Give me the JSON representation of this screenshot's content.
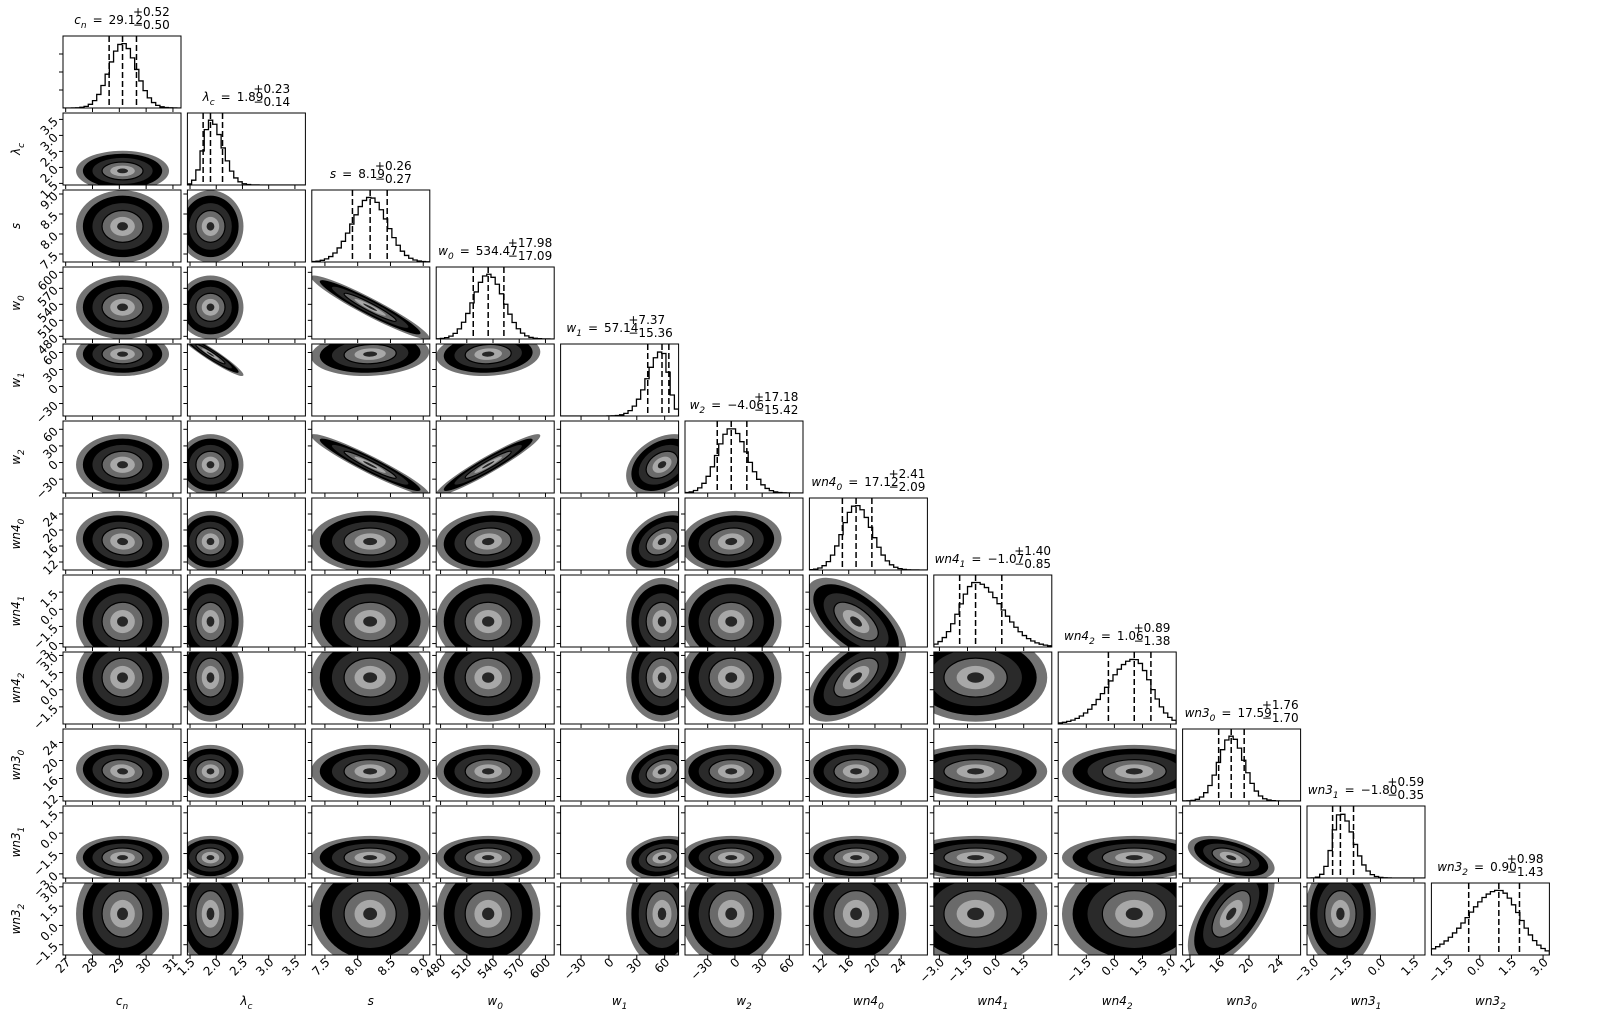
{
  "chart_data": {
    "type": "corner",
    "title_sep": "=",
    "params": [
      {
        "symbol": "c",
        "sub": "n",
        "lim": [
          26.9,
          31.3
        ],
        "ticks": [
          27,
          28,
          29,
          30,
          31
        ],
        "median": 29.12,
        "plus": 0.52,
        "minus": 0.5,
        "value_labels": {
          "median": "29.12",
          "plus": "+0.52",
          "minus": "−0.50"
        },
        "corr": []
      },
      {
        "symbol": "λ",
        "sub": "c",
        "lim": [
          1.45,
          3.7
        ],
        "ticks": [
          1.5,
          {
            "value": 2,
            "label": "2.0"
          },
          2.5,
          {
            "value": 3,
            "label": "3.0"
          },
          3.5
        ],
        "median": 1.89,
        "plus": 0.23,
        "minus": 0.14,
        "value_labels": {
          "median": "1.89",
          "plus": "+0.23",
          "minus": "−0.14"
        },
        "corr": [
          0
        ]
      },
      {
        "symbol": "s",
        "lim": [
          7.3,
          9.1
        ],
        "ticks": [
          7.5,
          {
            "value": 8,
            "label": "8.0"
          },
          8.5,
          {
            "value": 9,
            "label": "9.0"
          }
        ],
        "median": 8.19,
        "plus": 0.26,
        "minus": 0.27,
        "value_labels": {
          "median": "8.19",
          "plus": "+0.26",
          "minus": "−0.27"
        },
        "corr": [
          0,
          0
        ]
      },
      {
        "symbol": "w",
        "sub": "0",
        "lim": [
          475,
          610
        ],
        "ticks": [
          480,
          510,
          540,
          570,
          600
        ],
        "median": 534.47,
        "plus": 17.98,
        "minus": 17.09,
        "value_labels": {
          "median": "534.47",
          "plus": "+17.98",
          "minus": "−17.09"
        },
        "corr": [
          0,
          0,
          -0.95
        ]
      },
      {
        "symbol": "w",
        "sub": "1",
        "lim": [
          -52,
          75
        ],
        "ticks": [
          {
            "value": -30,
            "label": "−30"
          },
          0,
          30,
          60
        ],
        "median": 57.14,
        "plus": 7.37,
        "minus": 15.36,
        "value_labels": {
          "median": "57.14",
          "plus": "+7.37",
          "minus": "−15.36"
        },
        "corr": [
          0,
          -0.95,
          0.1,
          0.1
        ]
      },
      {
        "symbol": "w",
        "sub": "2",
        "lim": [
          -55,
          75
        ],
        "ticks": [
          {
            "value": -30,
            "label": "−30"
          },
          0,
          30,
          60
        ],
        "median": -4.06,
        "plus": 17.18,
        "minus": 15.42,
        "value_labels": {
          "median": "−4.06",
          "plus": "+17.18",
          "minus": "−15.42"
        },
        "corr": [
          0,
          0,
          -0.95,
          0.95,
          0.35
        ]
      },
      {
        "symbol": "wn4",
        "sub": "0",
        "lim": [
          10,
          28
        ],
        "ticks": [
          12,
          16,
          20,
          24
        ],
        "median": 17.12,
        "plus": 2.41,
        "minus": 2.09,
        "value_labels": {
          "median": "17.12",
          "plus": "+2.41",
          "minus": "−2.09"
        },
        "corr": [
          -0.1,
          0,
          0,
          0.1,
          0.35,
          0.1
        ]
      },
      {
        "symbol": "wn4",
        "sub": "1",
        "lim": [
          -3.3,
          3.0
        ],
        "ticks": [
          {
            "value": -3,
            "label": "−3.0"
          },
          {
            "value": -1.5,
            "label": "−1.5"
          },
          {
            "value": 0,
            "label": "0.0"
          },
          1.5
        ],
        "median": -1.07,
        "plus": 1.4,
        "minus": 0.85,
        "value_labels": {
          "median": "−1.07",
          "plus": "+1.40",
          "minus": "−0.85"
        },
        "corr": [
          0,
          0,
          0,
          0,
          0,
          0,
          -0.6
        ]
      },
      {
        "symbol": "wn4",
        "sub": "2",
        "lim": [
          -3.0,
          3.3
        ],
        "ticks": [
          {
            "value": -1.5,
            "label": "−1.5"
          },
          {
            "value": 0,
            "label": "0.0"
          },
          1.5,
          {
            "value": 3,
            "label": "3.0"
          }
        ],
        "median": 1.06,
        "plus": 0.89,
        "minus": 1.38,
        "value_labels": {
          "median": "1.06",
          "plus": "+0.89",
          "minus": "−1.38"
        },
        "corr": [
          0,
          0,
          0,
          0,
          0,
          0,
          0.6,
          0
        ]
      },
      {
        "symbol": "wn3",
        "sub": "0",
        "lim": [
          11,
          27
        ],
        "ticks": [
          12,
          16,
          20,
          24
        ],
        "median": 17.59,
        "plus": 1.76,
        "minus": 1.7,
        "value_labels": {
          "median": "17.59",
          "plus": "+1.76",
          "minus": "−1.70"
        },
        "corr": [
          -0.1,
          0,
          0,
          0,
          0.3,
          0,
          0,
          0,
          0
        ]
      },
      {
        "symbol": "wn3",
        "sub": "1",
        "lim": [
          -3.3,
          2.0
        ],
        "ticks": [
          {
            "value": -3,
            "label": "−3.0"
          },
          {
            "value": -1.5,
            "label": "−1.5"
          },
          {
            "value": 0,
            "label": "0.0"
          },
          1.5
        ],
        "median": -1.8,
        "plus": 0.59,
        "minus": 0.35,
        "value_labels": {
          "median": "−1.80",
          "plus": "+0.59",
          "minus": "−0.35"
        },
        "corr": [
          0,
          0,
          0,
          0,
          0.2,
          0,
          0,
          0,
          0,
          -0.5
        ]
      },
      {
        "symbol": "wn3",
        "sub": "2",
        "lim": [
          -2.3,
          3.3
        ],
        "ticks": [
          {
            "value": -1.5,
            "label": "−1.5"
          },
          {
            "value": 0,
            "label": "0.0"
          },
          1.5,
          {
            "value": 3,
            "label": "3.0"
          }
        ],
        "median": 0.9,
        "plus": 0.98,
        "minus": 1.43,
        "value_labels": {
          "median": "0.90",
          "plus": "+0.98",
          "minus": "−1.43"
        },
        "corr": [
          0,
          0,
          0,
          0,
          0,
          0,
          0,
          0,
          0,
          0.6,
          0
        ]
      }
    ]
  }
}
